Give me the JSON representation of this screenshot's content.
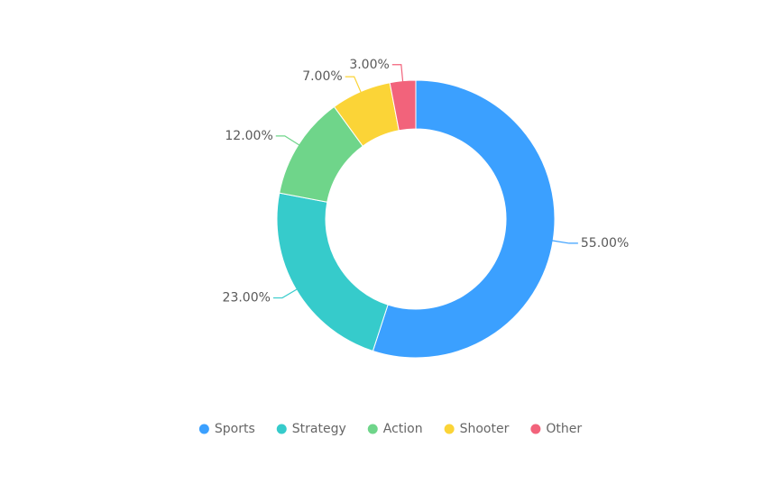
{
  "chart_data": {
    "type": "pie",
    "categories": [
      "Sports",
      "Strategy",
      "Action",
      "Shooter",
      "Other"
    ],
    "values": [
      55,
      23,
      12,
      7,
      3
    ],
    "value_labels": [
      "55.00%",
      "23.00%",
      "12.00%",
      "7.00%",
      "3.00%"
    ],
    "colors": [
      "#3ba0ff",
      "#36cbcb",
      "#6fd58a",
      "#fbd437",
      "#f2637b"
    ],
    "legend": "bottom"
  }
}
